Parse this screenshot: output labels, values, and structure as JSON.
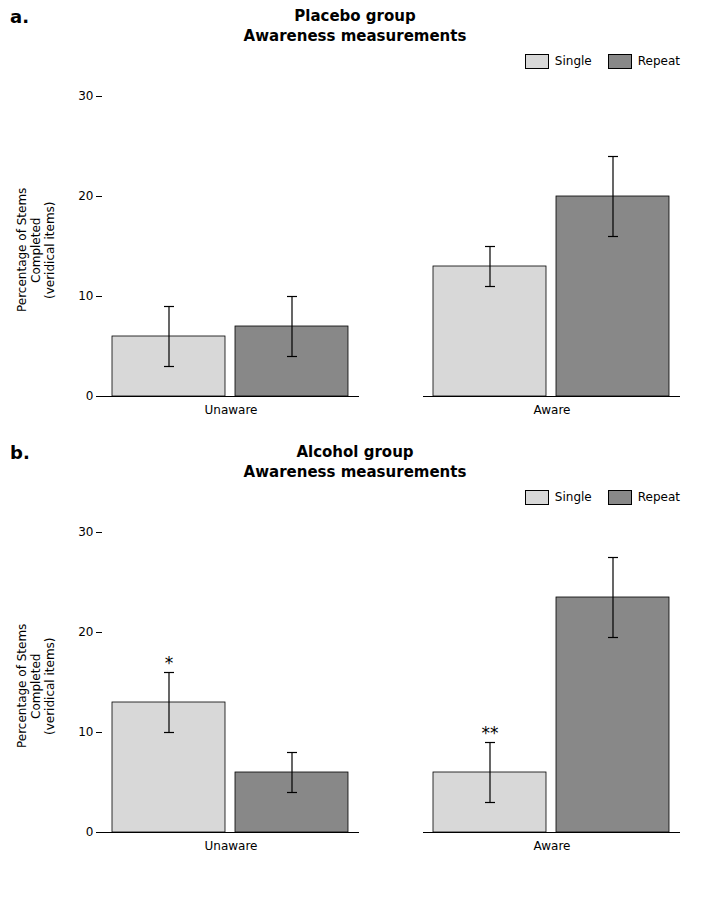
{
  "chart_data": [
    {
      "type": "bar",
      "title": "Placebo group\nAwareness measurements",
      "ylabel": "Percentage of Stems\nCompleted\n(veridical items)",
      "categories": [
        "Unaware",
        "Aware"
      ],
      "series": [
        {
          "name": "Single",
          "color": "#d8d8d8",
          "values": [
            6.0,
            13.0
          ],
          "errors": [
            3.0,
            2.0
          ]
        },
        {
          "name": "Repeat",
          "color": "#888888",
          "values": [
            7.0,
            20.0
          ],
          "errors": [
            3.0,
            4.0
          ]
        }
      ],
      "ylim": [
        0,
        30
      ],
      "yticks": [
        0,
        10,
        20,
        30
      ],
      "legend": "upper right",
      "grid": false,
      "annotations": [
        {
          "text": "a."
        }
      ]
    },
    {
      "type": "bar",
      "title": "Alcohol group\nAwareness measurements",
      "ylabel": "Percentage of Stems\nCompleted\n(veridical items)",
      "categories": [
        "Unaware",
        "Aware"
      ],
      "series": [
        {
          "name": "Single",
          "color": "#d8d8d8",
          "values": [
            13.0,
            6.0
          ],
          "errors": [
            3.0,
            3.0
          ]
        },
        {
          "name": "Repeat",
          "color": "#888888",
          "values": [
            6.0,
            23.5
          ],
          "errors": [
            2.0,
            4.0
          ]
        }
      ],
      "ylim": [
        0,
        30
      ],
      "yticks": [
        0,
        10,
        20,
        30
      ],
      "legend": "upper right",
      "grid": false,
      "annotations": [
        {
          "text": "b."
        },
        {
          "text": "*",
          "category": "Unaware",
          "series": "Single"
        },
        {
          "text": "**",
          "category": "Aware",
          "series": "Single"
        }
      ]
    }
  ]
}
